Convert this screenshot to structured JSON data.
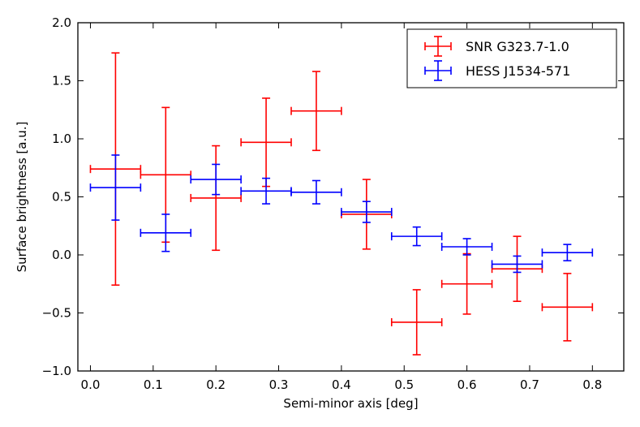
{
  "chart_data": {
    "type": "scatter",
    "title": "",
    "xlabel": "Semi-minor axis [deg]",
    "ylabel": "Surface brightness [a.u.]",
    "xlim": [
      -0.02,
      0.85
    ],
    "ylim": [
      -1.0,
      2.0
    ],
    "xticks": [
      0.0,
      0.1,
      0.2,
      0.3,
      0.4,
      0.5,
      0.6,
      0.7,
      0.8
    ],
    "xtick_labels": [
      "0.0",
      "0.1",
      "0.2",
      "0.3",
      "0.4",
      "0.5",
      "0.6",
      "0.7",
      "0.8"
    ],
    "yticks": [
      -1.0,
      -0.5,
      0.0,
      0.5,
      1.0,
      1.5,
      2.0
    ],
    "ytick_labels": [
      "−1.0",
      "−0.5",
      "0.0",
      "0.5",
      "1.0",
      "1.5",
      "2.0"
    ],
    "legend_position": "top-right",
    "series": [
      {
        "name": "SNR G323.7-1.0",
        "color": "#ff0000",
        "x": [
          0.04,
          0.12,
          0.2,
          0.28,
          0.36,
          0.44,
          0.52,
          0.6,
          0.68,
          0.76
        ],
        "xerr": [
          0.04,
          0.04,
          0.04,
          0.04,
          0.04,
          0.04,
          0.04,
          0.04,
          0.04,
          0.04
        ],
        "y": [
          0.74,
          0.69,
          0.49,
          0.97,
          1.24,
          0.35,
          -0.58,
          -0.25,
          -0.12,
          -0.45
        ],
        "yerr": [
          1.0,
          0.58,
          0.45,
          0.38,
          0.34,
          0.3,
          0.28,
          0.26,
          0.28,
          0.29
        ]
      },
      {
        "name": "HESS J1534-571",
        "color": "#0000ff",
        "x": [
          0.04,
          0.12,
          0.2,
          0.28,
          0.36,
          0.44,
          0.52,
          0.6,
          0.68,
          0.76
        ],
        "xerr": [
          0.04,
          0.04,
          0.04,
          0.04,
          0.04,
          0.04,
          0.04,
          0.04,
          0.04,
          0.04
        ],
        "y": [
          0.58,
          0.19,
          0.65,
          0.55,
          0.54,
          0.37,
          0.16,
          0.07,
          -0.08,
          0.02
        ],
        "yerr": [
          0.28,
          0.16,
          0.13,
          0.11,
          0.1,
          0.09,
          0.08,
          0.07,
          0.07,
          0.07
        ]
      }
    ]
  }
}
